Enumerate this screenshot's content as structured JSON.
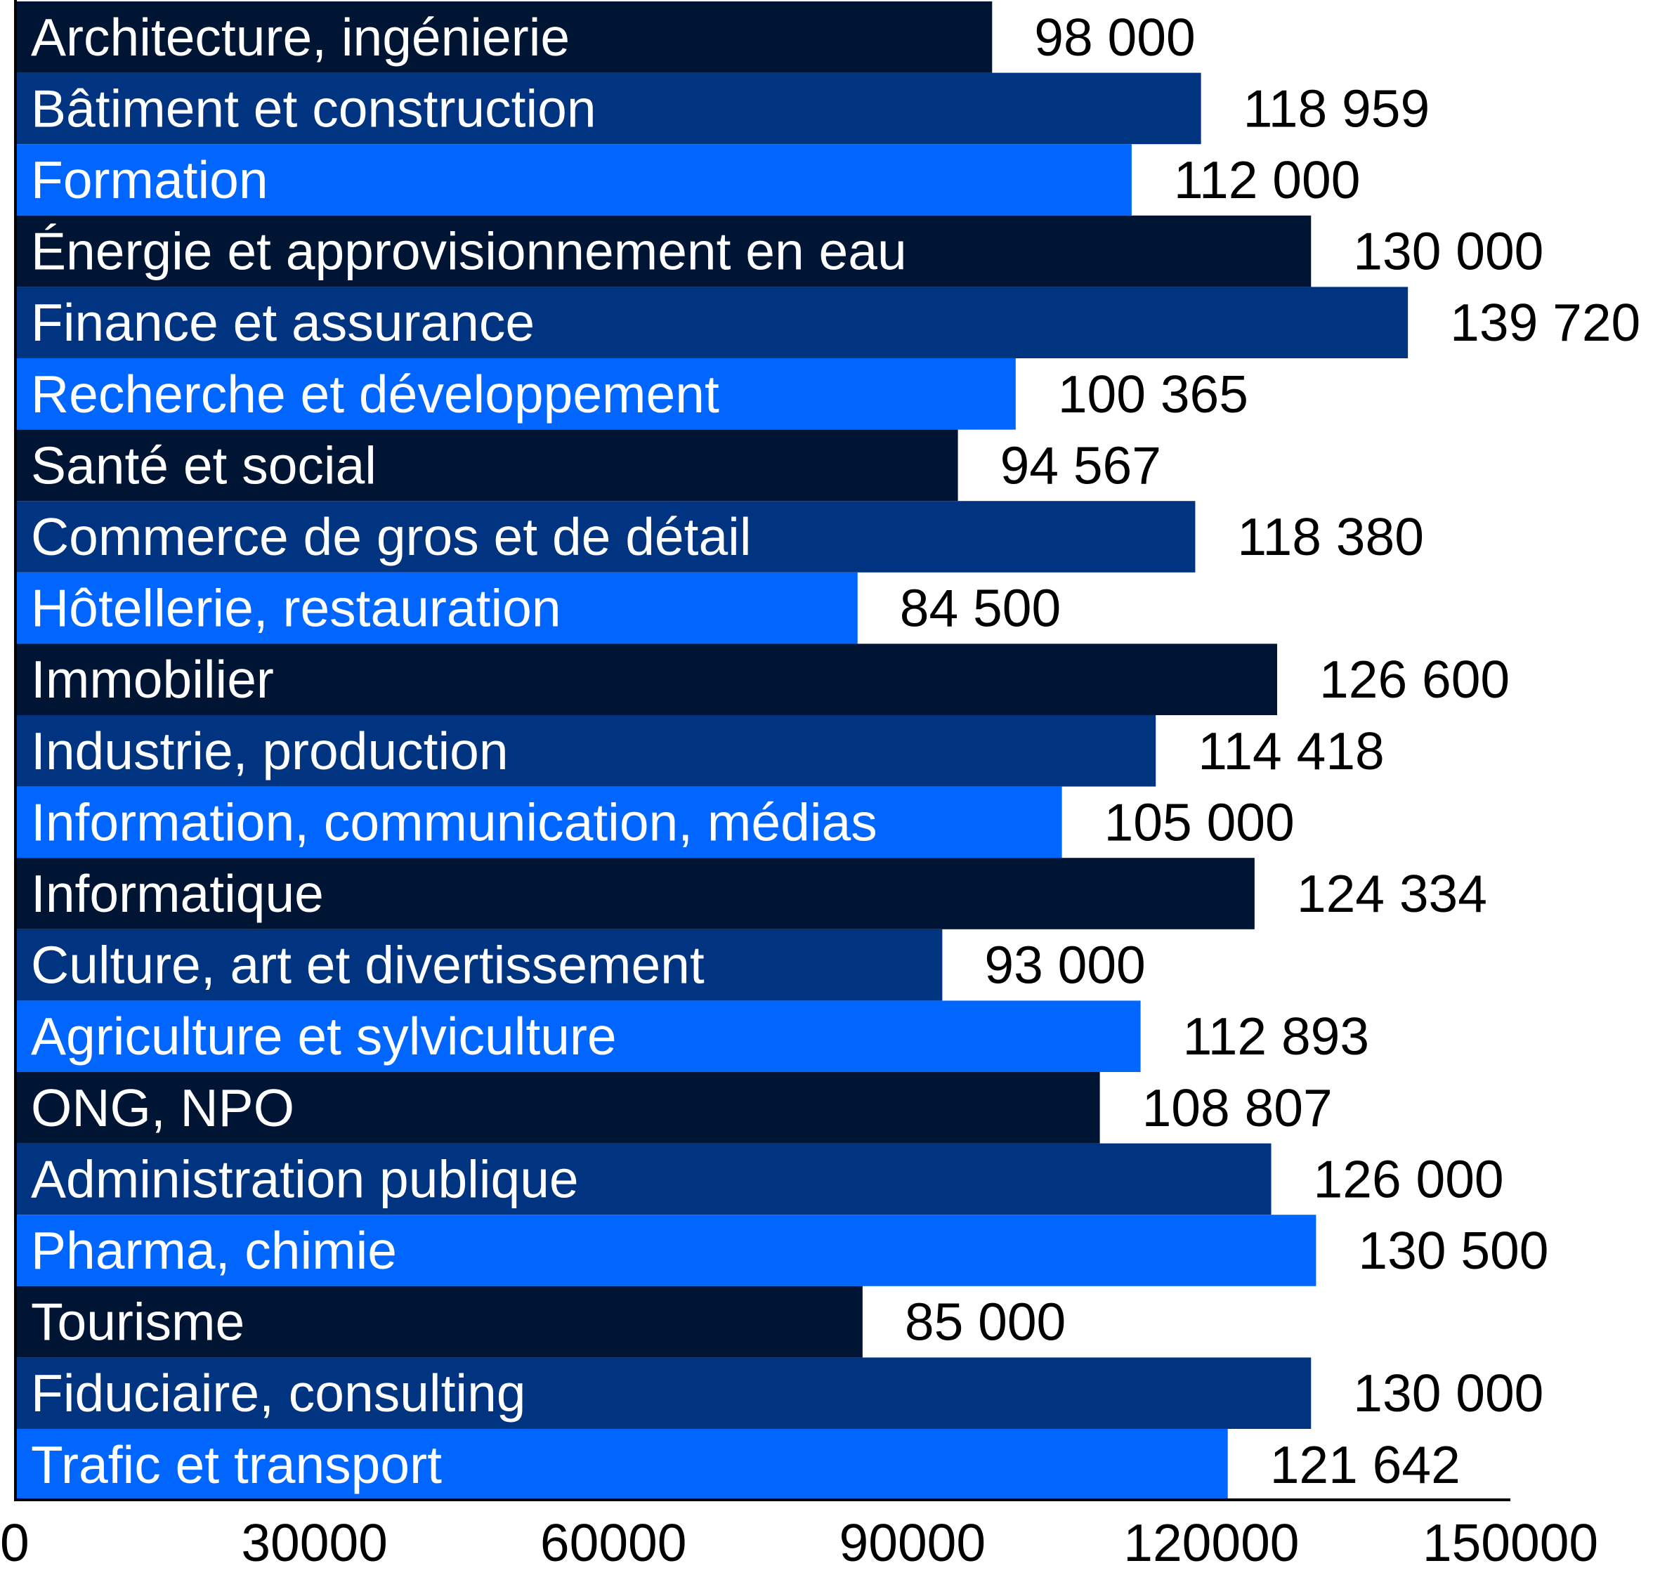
{
  "chart_data": {
    "type": "bar",
    "orientation": "horizontal",
    "categories": [
      "Architecture, ingénierie",
      "Bâtiment et construction",
      "Formation",
      "Énergie et approvisionnement en eau",
      "Finance et assurance",
      "Recherche et développement",
      "Santé et social",
      "Commerce de gros et de détail",
      "Hôtellerie, restauration",
      "Immobilier",
      "Industrie, production",
      "Information, communication, médias",
      "Informatique",
      "Culture, art et divertissement",
      "Agriculture et sylviculture",
      "ONG, NPO",
      "Administration publique",
      "Pharma, chimie",
      "Tourisme",
      "Fiduciaire, consulting",
      "Trafic et transport"
    ],
    "values": [
      98000,
      118959,
      112000,
      130000,
      139720,
      100365,
      94567,
      118380,
      84500,
      126600,
      114418,
      105000,
      124334,
      93000,
      112893,
      108807,
      126000,
      130500,
      85000,
      130000,
      121642
    ],
    "value_labels": [
      "98 000",
      "118 959",
      "112 000",
      "130 000",
      "139 720",
      "100 365",
      "94 567",
      "118 380",
      "84 500",
      "126 600",
      "114 418",
      "105 000",
      "124 334",
      "93 000",
      "112 893",
      "108 807",
      "126 000",
      "130 500",
      "85 000",
      "130 000",
      "121 642"
    ],
    "xlim": [
      0,
      150000
    ],
    "x_ticks": [
      0,
      30000,
      60000,
      90000,
      120000,
      150000
    ],
    "x_tick_labels": [
      "0",
      "30000",
      "60000",
      "90000",
      "120000",
      "150000"
    ],
    "bar_colors": [
      "#001433",
      "#003380",
      "#0066ff"
    ],
    "grid": false,
    "legend": "none",
    "title": "",
    "xlabel": "",
    "ylabel": ""
  }
}
